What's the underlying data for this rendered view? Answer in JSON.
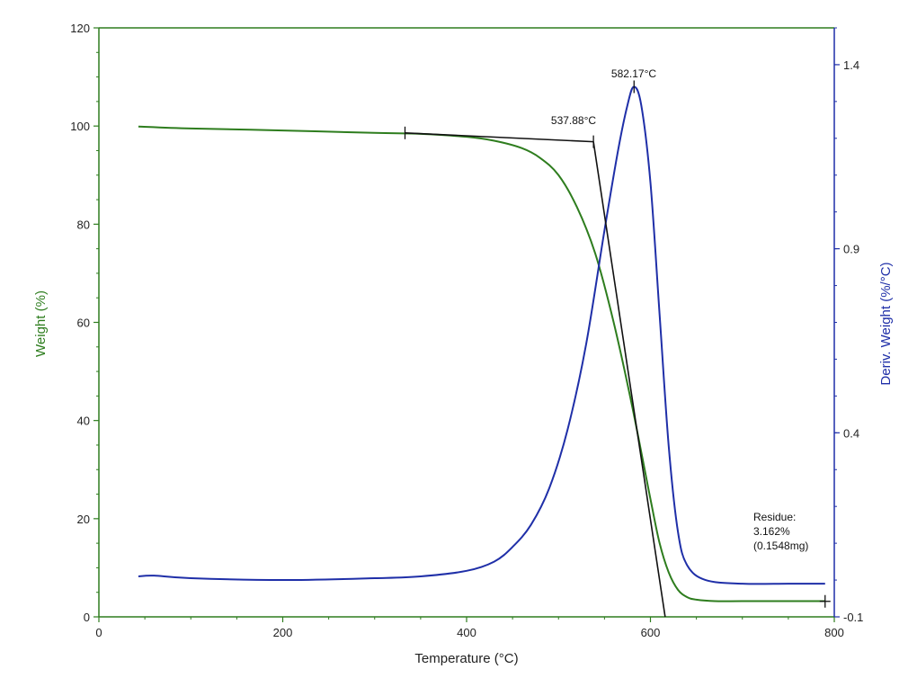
{
  "colors": {
    "weight": "#2e7d1e",
    "deriv": "#1f2fa8",
    "tangent": "#111111",
    "frame": "#2e7d1e",
    "right_axis": "#1f2fa8"
  },
  "chart_data": {
    "type": "line",
    "xlabel": "Temperature (°C)",
    "ylabel_left": "Weight (%)",
    "ylabel_right": "Deriv. Weight (%/°C)",
    "xlim": [
      0,
      800
    ],
    "ylim_left": [
      0,
      120
    ],
    "ylim_right": [
      -0.1,
      1.5
    ],
    "x_ticks": [
      "0",
      "200",
      "400",
      "600",
      "800"
    ],
    "y_left_ticks": [
      "0",
      "20",
      "40",
      "60",
      "80",
      "100",
      "120"
    ],
    "y_right_ticks": [
      "-0.1",
      "0.4",
      "0.9",
      "1.4"
    ],
    "grid": false,
    "series": [
      {
        "name": "Weight",
        "axis": "left",
        "x": [
          43,
          100,
          200,
          300,
          350,
          400,
          430,
          460,
          480,
          500,
          520,
          540,
          560,
          580,
          600,
          610,
          620,
          630,
          640,
          650,
          670,
          700,
          750,
          790
        ],
        "y": [
          99.9,
          99.5,
          99.1,
          98.6,
          98.4,
          97.8,
          97.0,
          95.5,
          93.5,
          90.0,
          83.5,
          74.0,
          60.0,
          43.0,
          24.0,
          15.0,
          9.0,
          5.5,
          4.0,
          3.5,
          3.2,
          3.2,
          3.2,
          3.2
        ]
      },
      {
        "name": "Deriv. Weight",
        "axis": "right",
        "x": [
          43,
          60,
          100,
          200,
          300,
          350,
          400,
          430,
          450,
          470,
          490,
          510,
          530,
          550,
          565,
          575,
          582,
          590,
          600,
          610,
          620,
          630,
          640,
          660,
          700,
          750,
          790
        ],
        "y": [
          0.01,
          0.012,
          0.005,
          0.0,
          0.005,
          0.01,
          0.025,
          0.05,
          0.09,
          0.15,
          0.25,
          0.41,
          0.64,
          0.95,
          1.17,
          1.29,
          1.34,
          1.29,
          1.08,
          0.72,
          0.36,
          0.13,
          0.04,
          0.0,
          -0.01,
          -0.01,
          -0.01
        ]
      }
    ],
    "tangents": [
      {
        "x": [
          333,
          538
        ],
        "y": [
          98.6,
          96.8
        ],
        "axis": "left"
      },
      {
        "x": [
          538,
          616
        ],
        "y": [
          96.8,
          0
        ],
        "axis": "left"
      }
    ],
    "markers": [
      {
        "x": 333,
        "y": 98.6,
        "axis": "left"
      },
      {
        "x": 538,
        "y": 96.8,
        "axis": "left"
      },
      {
        "x": 582.17,
        "y": 1.34,
        "axis": "right"
      },
      {
        "x": 790,
        "y": 3.162,
        "axis": "left"
      }
    ],
    "annotations": {
      "onset": "537.88°C",
      "peak": "582.17°C",
      "residue_line1": "Residue:",
      "residue_line2": "3.162%",
      "residue_line3": "(0.1548mg)"
    }
  }
}
